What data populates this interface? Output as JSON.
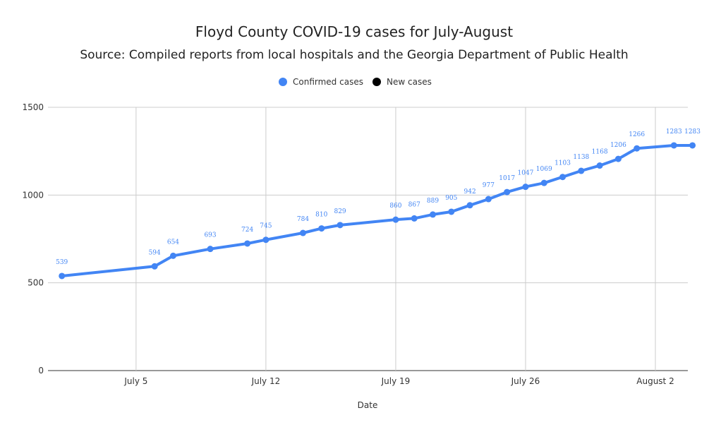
{
  "chart_data": {
    "type": "line",
    "title": "Floyd County COVID-19 cases for July-August",
    "subtitle": "Source: Compiled reports from local hospitals and the Georgia Department of Public Health",
    "xlabel": "Date",
    "ylabel": "",
    "ylim": [
      0,
      1500
    ],
    "y_ticks": [
      0,
      500,
      1000,
      1500
    ],
    "x_ticks": [
      "July 5",
      "July 12",
      "July 19",
      "July 26",
      "August 2"
    ],
    "x": [
      "2020-06-30",
      "2020-07-05",
      "2020-07-06",
      "2020-07-07",
      "2020-07-08",
      "2020-07-09",
      "2020-07-10",
      "2020-07-11",
      "2020-07-12",
      "2020-07-13",
      "2020-07-14",
      "2020-07-15",
      "2020-07-16",
      "2020-07-17",
      "2020-07-18",
      "2020-07-19",
      "2020-07-20",
      "2020-07-21",
      "2020-07-22",
      "2020-07-23",
      "2020-07-24",
      "2020-07-25",
      "2020-07-26",
      "2020-07-27",
      "2020-07-28",
      "2020-07-29",
      "2020-07-30",
      "2020-07-31",
      "2020-08-01",
      "2020-08-02",
      "2020-08-03"
    ],
    "grid": true,
    "legend_position": "top-center",
    "series": [
      {
        "name": "Confirmed cases",
        "color": "#4285f4",
        "x": [
          "2020-07-01",
          "2020-07-06",
          "2020-07-07",
          "2020-07-09",
          "2020-07-11",
          "2020-07-12",
          "2020-07-14",
          "2020-07-15",
          "2020-07-16",
          "2020-07-19",
          "2020-07-20",
          "2020-07-21",
          "2020-07-22",
          "2020-07-23",
          "2020-07-24",
          "2020-07-25",
          "2020-07-26",
          "2020-07-27",
          "2020-07-28",
          "2020-07-29",
          "2020-07-30",
          "2020-07-31",
          "2020-08-01",
          "2020-08-03",
          "2020-08-04"
        ],
        "values": [
          539,
          594,
          654,
          693,
          724,
          745,
          784,
          810,
          829,
          860,
          867,
          889,
          905,
          942,
          977,
          1017,
          1047,
          1069,
          1103,
          1138,
          1168,
          1206,
          1266,
          1283,
          1283
        ]
      },
      {
        "name": "New cases",
        "color": "#000000",
        "x": [],
        "values": []
      }
    ]
  }
}
